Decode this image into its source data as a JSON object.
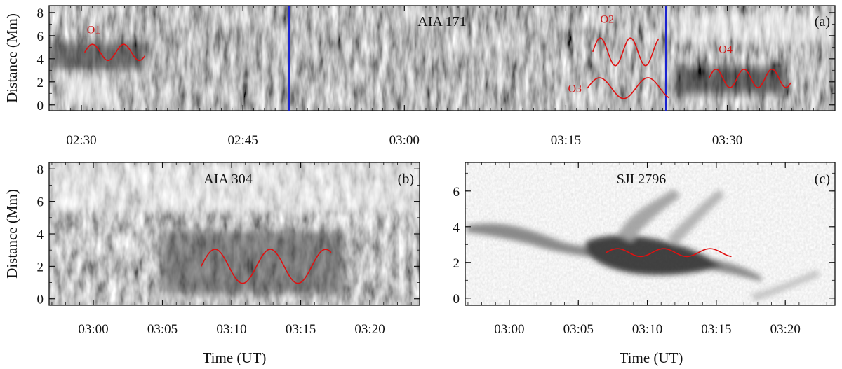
{
  "colors": {
    "fit_curve": "#e01010",
    "marker_line": "#1a22d0",
    "frame": "#111111"
  },
  "chart_data": [
    {
      "type": "heatmap",
      "panel_tag": "(a)",
      "title": "AIA 171",
      "ylabel": "Distance (Mm)",
      "xlabel": "",
      "x_ticks": [
        "02:30",
        "02:45",
        "03:00",
        "03:15",
        "03:30"
      ],
      "x_tick_minutes": [
        150,
        165,
        180,
        195,
        210
      ],
      "xlim_minutes": [
        147,
        220
      ],
      "y_ticks": [
        "0",
        "2",
        "4",
        "6",
        "8"
      ],
      "ylim": [
        -0.5,
        8.6
      ],
      "time_markers_minutes": [
        169.3,
        204.3
      ],
      "oscillations": [
        {
          "label": "O1",
          "t_start": 150.3,
          "t_end": 155.9,
          "center": 4.55,
          "amplitude": 0.7,
          "period": 2.9,
          "label_at": [
            150.5,
            6.2
          ]
        },
        {
          "label": "O2",
          "t_start": 197.5,
          "t_end": 203.6,
          "center": 4.6,
          "amplitude": 1.2,
          "period": 2.8,
          "label_at": [
            198.2,
            7.1
          ]
        },
        {
          "label": "O3",
          "t_start": 197.0,
          "t_end": 204.6,
          "center": 1.45,
          "amplitude": 0.9,
          "period": 4.5,
          "label_at": [
            195.2,
            1.1
          ]
        },
        {
          "label": "O4",
          "t_start": 208.3,
          "t_end": 215.9,
          "center": 2.3,
          "amplitude": 0.8,
          "period": 2.6,
          "label_at": [
            209.2,
            4.5
          ]
        }
      ]
    },
    {
      "type": "heatmap",
      "panel_tag": "(b)",
      "title": "AIA 304",
      "ylabel": "Distance (Mm)",
      "xlabel": "Time (UT)",
      "x_ticks": [
        "03:00",
        "03:05",
        "03:10",
        "03:15",
        "03:20"
      ],
      "x_tick_minutes": [
        180,
        185,
        190,
        195,
        200
      ],
      "xlim_minutes": [
        176.8,
        203.6
      ],
      "y_ticks": [
        "0",
        "2",
        "4",
        "6",
        "8"
      ],
      "ylim": [
        -0.4,
        8.4
      ],
      "fit": {
        "t_start": 187.8,
        "t_end": 197.2,
        "center": 2.0,
        "amplitude": 1.05,
        "period": 4.0
      }
    },
    {
      "type": "heatmap",
      "panel_tag": "(c)",
      "title": "SJI 2796",
      "ylabel": "",
      "xlabel": "Time (UT)",
      "x_ticks": [
        "03:00",
        "03:05",
        "03:10",
        "03:15",
        "03:20"
      ],
      "x_tick_minutes": [
        180,
        185,
        190,
        195,
        200
      ],
      "xlim_minutes": [
        176.8,
        203.6
      ],
      "y_ticks": [
        "0",
        "2",
        "4",
        "6"
      ],
      "ylim": [
        -0.4,
        7.6
      ],
      "fit": {
        "t_start": 187.0,
        "t_end": 196.1,
        "center": 2.55,
        "amplitude": 0.22,
        "period": 3.35
      }
    }
  ]
}
